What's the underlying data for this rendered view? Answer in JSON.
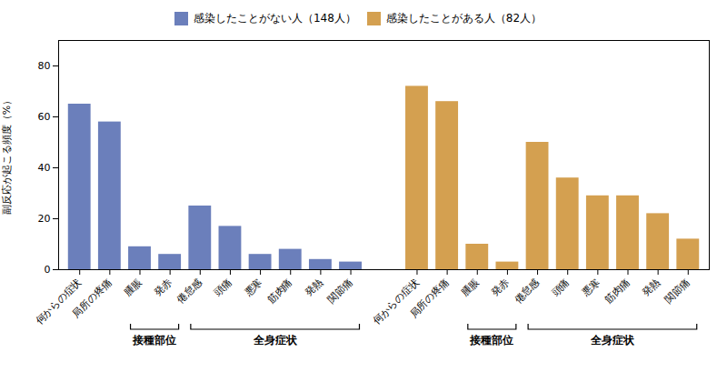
{
  "chart_data": {
    "type": "bar",
    "ylabel": "副反応が起こる頻度（%）",
    "categories": [
      "何からの症状",
      "局所の疼痛",
      "腫脹",
      "発赤",
      "倦怠感",
      "頭痛",
      "悪寒",
      "筋肉痛",
      "発熱",
      "関節痛"
    ],
    "series": [
      {
        "name": "感染したことがない人（148人）",
        "color": "#6B7FBB",
        "values": [
          65,
          58,
          9,
          6,
          25,
          17,
          6,
          8,
          4,
          3
        ],
        "annotations": [
          {
            "text": "接種部位",
            "from": "腫脹",
            "to": "発赤"
          },
          {
            "text": "全身症状",
            "from": "倦怠感",
            "to": "関節痛"
          }
        ]
      },
      {
        "name": "感染したことがある人（82人）",
        "color": "#D4A050",
        "values": [
          72,
          66,
          10,
          3,
          50,
          36,
          29,
          29,
          22,
          12
        ],
        "annotations": [
          {
            "text": "接種部位",
            "from": "腫脹",
            "to": "発赤"
          },
          {
            "text": "全身症状",
            "from": "倦怠感",
            "to": "関節痛"
          }
        ]
      }
    ],
    "ylim": [
      0,
      90
    ],
    "yticks": [
      0,
      20,
      40,
      60,
      80
    ],
    "grid": false,
    "legend": "top"
  }
}
